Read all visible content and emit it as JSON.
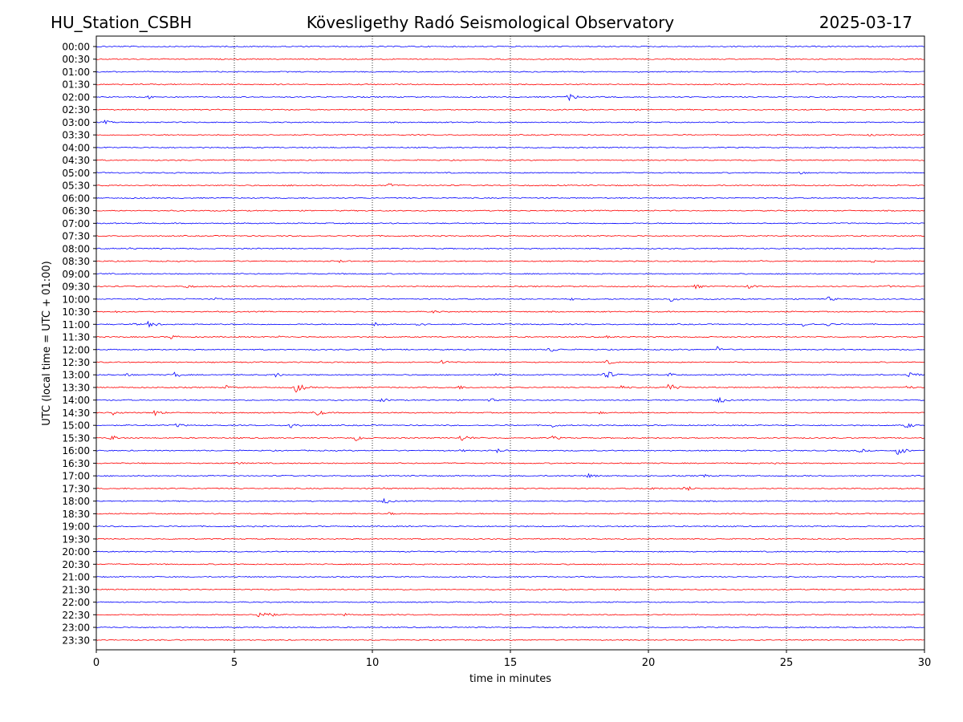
{
  "header": {
    "station": "HU_Station_CSBH",
    "title": "Kövesligethy Radó Seismological Observatory",
    "date": "2025-03-17"
  },
  "chart_data": {
    "type": "line",
    "title": "Kövesligethy Radó Seismological Observatory",
    "xlabel": "time in minutes",
    "ylabel": "UTC (local time = UTC + 01:00)",
    "xlim": [
      0,
      30
    ],
    "x_ticks": [
      0,
      5,
      10,
      15,
      20,
      25,
      30
    ],
    "grid": "vertical dotted lines at 5-minute ticks",
    "colors": {
      "even_rows": "#0000ff",
      "odd_rows": "#ff0000"
    },
    "rows": [
      {
        "label": "00:00",
        "color": "blue",
        "events": []
      },
      {
        "label": "00:30",
        "color": "red",
        "events": []
      },
      {
        "label": "01:00",
        "color": "blue",
        "events": []
      },
      {
        "label": "01:30",
        "color": "red",
        "events": []
      },
      {
        "label": "02:00",
        "color": "blue",
        "events": [
          {
            "t": 1.9,
            "amp": 2.5
          },
          {
            "t": 17.1,
            "amp": 5
          }
        ]
      },
      {
        "label": "02:30",
        "color": "red",
        "events": []
      },
      {
        "label": "03:00",
        "color": "blue",
        "events": [
          {
            "t": 0.3,
            "amp": 2.5
          }
        ]
      },
      {
        "label": "03:30",
        "color": "red",
        "events": [
          {
            "t": 28.0,
            "amp": 2
          }
        ]
      },
      {
        "label": "04:00",
        "color": "blue",
        "events": []
      },
      {
        "label": "04:30",
        "color": "red",
        "events": []
      },
      {
        "label": "05:00",
        "color": "blue",
        "events": [
          {
            "t": 25.5,
            "amp": 2
          }
        ]
      },
      {
        "label": "05:30",
        "color": "red",
        "events": [
          {
            "t": 7.1,
            "amp": 2
          },
          {
            "t": 10.6,
            "amp": 3
          }
        ]
      },
      {
        "label": "06:00",
        "color": "blue",
        "events": []
      },
      {
        "label": "06:30",
        "color": "red",
        "events": []
      },
      {
        "label": "07:00",
        "color": "blue",
        "events": []
      },
      {
        "label": "07:30",
        "color": "red",
        "events": []
      },
      {
        "label": "08:00",
        "color": "blue",
        "events": [
          {
            "t": 1.2,
            "amp": 2
          }
        ]
      },
      {
        "label": "08:30",
        "color": "red",
        "events": [
          {
            "t": 8.8,
            "amp": 2
          },
          {
            "t": 24.0,
            "amp": 2
          },
          {
            "t": 28.1,
            "amp": 2
          }
        ]
      },
      {
        "label": "09:00",
        "color": "blue",
        "events": []
      },
      {
        "label": "09:30",
        "color": "red",
        "events": [
          {
            "t": 3.2,
            "amp": 3
          },
          {
            "t": 21.7,
            "amp": 3
          },
          {
            "t": 23.6,
            "amp": 3
          },
          {
            "t": 28.6,
            "amp": 2
          }
        ]
      },
      {
        "label": "10:00",
        "color": "blue",
        "events": [
          {
            "t": 4.3,
            "amp": 2
          },
          {
            "t": 17.2,
            "amp": 2
          },
          {
            "t": 20.8,
            "amp": 3
          },
          {
            "t": 26.5,
            "amp": 3
          }
        ]
      },
      {
        "label": "10:30",
        "color": "red",
        "events": [
          {
            "t": 0.6,
            "amp": 2
          },
          {
            "t": 12.2,
            "amp": 2
          }
        ]
      },
      {
        "label": "11:00",
        "color": "blue",
        "events": [
          {
            "t": 1.3,
            "amp": 2
          },
          {
            "t": 1.9,
            "amp": 5
          },
          {
            "t": 10.1,
            "amp": 3
          },
          {
            "t": 11.6,
            "amp": 3
          },
          {
            "t": 25.6,
            "amp": 3
          },
          {
            "t": 26.4,
            "amp": 3
          }
        ]
      },
      {
        "label": "11:30",
        "color": "red",
        "events": [
          {
            "t": 2.7,
            "amp": 3
          },
          {
            "t": 6.6,
            "amp": 2
          },
          {
            "t": 18.5,
            "amp": 2
          }
        ]
      },
      {
        "label": "12:00",
        "color": "blue",
        "events": [
          {
            "t": 10.1,
            "amp": 2
          },
          {
            "t": 16.4,
            "amp": 4
          },
          {
            "t": 22.5,
            "amp": 4
          }
        ]
      },
      {
        "label": "12:30",
        "color": "red",
        "events": [
          {
            "t": 12.5,
            "amp": 4
          },
          {
            "t": 18.5,
            "amp": 3
          }
        ]
      },
      {
        "label": "13:00",
        "color": "blue",
        "events": [
          {
            "t": 1.0,
            "amp": 3
          },
          {
            "t": 2.8,
            "amp": 4
          },
          {
            "t": 6.5,
            "amp": 3
          },
          {
            "t": 14.5,
            "amp": 3
          },
          {
            "t": 18.4,
            "amp": 7
          },
          {
            "t": 20.7,
            "amp": 3
          },
          {
            "t": 29.4,
            "amp": 5
          }
        ]
      },
      {
        "label": "13:30",
        "color": "red",
        "events": [
          {
            "t": 4.7,
            "amp": 3
          },
          {
            "t": 7.2,
            "amp": 7
          },
          {
            "t": 13.1,
            "amp": 3
          },
          {
            "t": 19.0,
            "amp": 3
          },
          {
            "t": 20.7,
            "amp": 6
          },
          {
            "t": 29.3,
            "amp": 3
          }
        ]
      },
      {
        "label": "14:00",
        "color": "blue",
        "events": [
          {
            "t": 10.3,
            "amp": 3
          },
          {
            "t": 14.2,
            "amp": 3
          },
          {
            "t": 22.5,
            "amp": 5
          }
        ]
      },
      {
        "label": "14:30",
        "color": "red",
        "events": [
          {
            "t": 0.6,
            "amp": 3
          },
          {
            "t": 2.1,
            "amp": 4
          },
          {
            "t": 7.9,
            "amp": 5
          },
          {
            "t": 18.2,
            "amp": 2
          }
        ]
      },
      {
        "label": "15:00",
        "color": "blue",
        "events": [
          {
            "t": 2.9,
            "amp": 3
          },
          {
            "t": 7.0,
            "amp": 5
          },
          {
            "t": 16.5,
            "amp": 3
          },
          {
            "t": 29.3,
            "amp": 4
          }
        ]
      },
      {
        "label": "15:30",
        "color": "red",
        "events": [
          {
            "t": 0.5,
            "amp": 4
          },
          {
            "t": 9.4,
            "amp": 4
          },
          {
            "t": 13.2,
            "amp": 5
          },
          {
            "t": 16.5,
            "amp": 3
          }
        ]
      },
      {
        "label": "16:00",
        "color": "blue",
        "events": [
          {
            "t": 13.2,
            "amp": 2
          },
          {
            "t": 14.5,
            "amp": 3
          },
          {
            "t": 27.6,
            "amp": 3
          },
          {
            "t": 29.0,
            "amp": 6
          }
        ]
      },
      {
        "label": "16:30",
        "color": "red",
        "events": [
          {
            "t": 5.1,
            "amp": 2
          },
          {
            "t": 24.6,
            "amp": 2
          }
        ]
      },
      {
        "label": "17:00",
        "color": "blue",
        "events": [
          {
            "t": 17.8,
            "amp": 3
          },
          {
            "t": 21.9,
            "amp": 3
          }
        ]
      },
      {
        "label": "17:30",
        "color": "red",
        "events": [
          {
            "t": 10.4,
            "amp": 2
          },
          {
            "t": 20.0,
            "amp": 3
          },
          {
            "t": 21.3,
            "amp": 4
          }
        ]
      },
      {
        "label": "18:00",
        "color": "blue",
        "events": [
          {
            "t": 10.4,
            "amp": 4
          }
        ]
      },
      {
        "label": "18:30",
        "color": "red",
        "events": [
          {
            "t": 10.6,
            "amp": 2
          }
        ]
      },
      {
        "label": "19:00",
        "color": "blue",
        "events": []
      },
      {
        "label": "19:30",
        "color": "red",
        "events": []
      },
      {
        "label": "20:00",
        "color": "blue",
        "events": []
      },
      {
        "label": "20:30",
        "color": "red",
        "events": []
      },
      {
        "label": "21:00",
        "color": "blue",
        "events": []
      },
      {
        "label": "21:30",
        "color": "red",
        "events": []
      },
      {
        "label": "22:00",
        "color": "blue",
        "events": []
      },
      {
        "label": "22:30",
        "color": "red",
        "events": [
          {
            "t": 5.9,
            "amp": 9
          },
          {
            "t": 9.0,
            "amp": 2
          }
        ]
      },
      {
        "label": "23:00",
        "color": "blue",
        "events": []
      },
      {
        "label": "23:30",
        "color": "red",
        "events": []
      }
    ]
  }
}
